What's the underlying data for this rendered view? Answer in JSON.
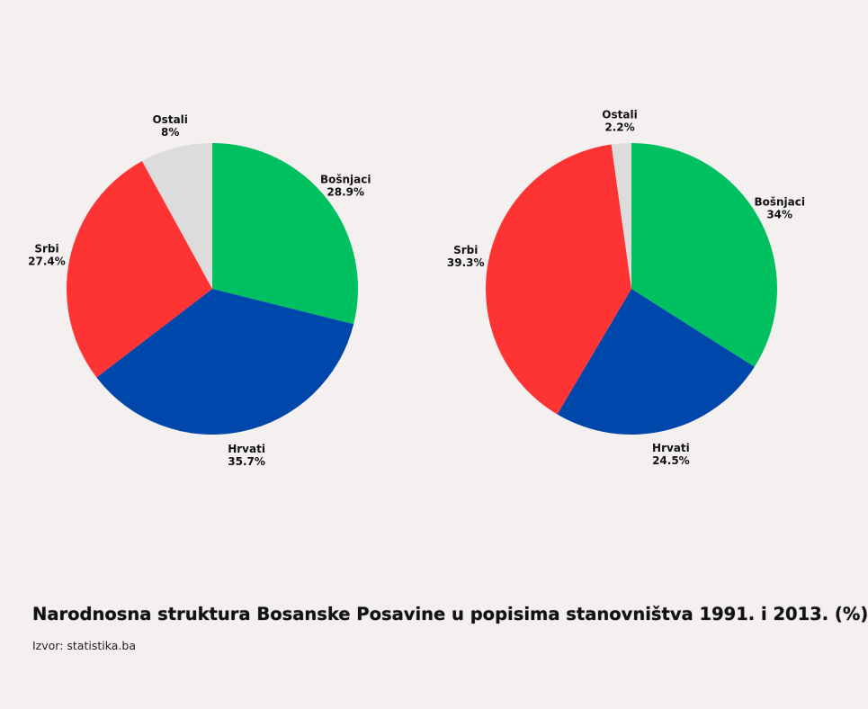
{
  "title": "Narodnosna struktura Bosanske Posavine u popisima stanovništva 1991. i 2013. (%)",
  "source": "Izvor: statistika.ba",
  "colors": {
    "Bošnjaci": "#00c060",
    "Hrvati": "#0047ab",
    "Srbi": "#fe3333",
    "Ostali": "#dcdcdc"
  },
  "chart_data": [
    {
      "type": "pie",
      "title": "",
      "slices": [
        {
          "label": "Bošnjaci",
          "value": 28.9,
          "display": "28.9%"
        },
        {
          "label": "Hrvati",
          "value": 35.7,
          "display": "35.7%"
        },
        {
          "label": "Srbi",
          "value": 27.4,
          "display": "27.4%"
        },
        {
          "label": "Ostali",
          "value": 8,
          "display": "8%"
        }
      ],
      "start": "top",
      "direction": "clockwise"
    },
    {
      "type": "pie",
      "title": "",
      "slices": [
        {
          "label": "Bošnjaci",
          "value": 34,
          "display": "34%"
        },
        {
          "label": "Hrvati",
          "value": 24.5,
          "display": "24.5%"
        },
        {
          "label": "Srbi",
          "value": 39.3,
          "display": "39.3%"
        },
        {
          "label": "Ostali",
          "value": 2.2,
          "display": "2.2%"
        }
      ],
      "start": "top",
      "direction": "clockwise"
    }
  ]
}
